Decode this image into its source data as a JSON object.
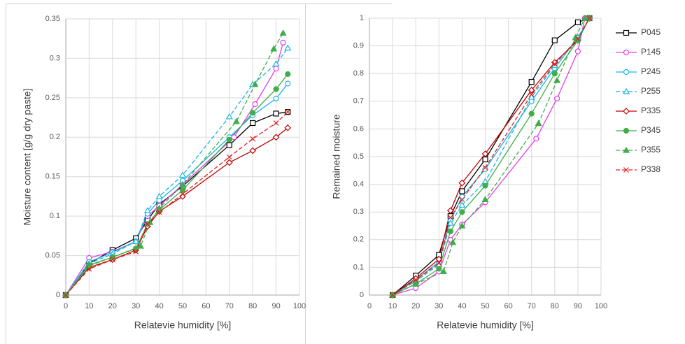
{
  "chart_data": [
    {
      "type": "line",
      "xlabel": "Relatevie humidity [%]",
      "ylabel": "Moisture content [g/g dry paste]",
      "xlim": [
        0,
        100
      ],
      "xticks": [
        0,
        10,
        20,
        30,
        40,
        50,
        60,
        70,
        80,
        90,
        100
      ],
      "ylim": [
        0,
        0.35
      ],
      "yticks": [
        0,
        0.05,
        0.1,
        0.15,
        0.2,
        0.25,
        0.3,
        0.35
      ],
      "grid": true,
      "series": [
        {
          "color": "#000000",
          "marker": "square",
          "dash": false,
          "filled": false,
          "x": [
            0,
            10,
            20,
            30,
            35,
            40,
            50,
            70,
            80,
            90,
            95
          ],
          "values": [
            0,
            0.04,
            0.057,
            0.072,
            0.095,
            0.115,
            0.138,
            0.19,
            0.218,
            0.23,
            0.232
          ]
        },
        {
          "color": "#e83ee8",
          "marker": "circle",
          "dash": false,
          "filled": false,
          "x": [
            0,
            10,
            20,
            30,
            35,
            40,
            50,
            72,
            81,
            90,
            93
          ],
          "values": [
            0,
            0.047,
            0.055,
            0.068,
            0.1,
            0.113,
            0.14,
            0.2,
            0.242,
            0.287,
            0.32
          ]
        },
        {
          "color": "#19b4e6",
          "marker": "circle",
          "dash": false,
          "filled": false,
          "x": [
            0,
            10,
            20,
            30,
            35,
            40,
            50,
            70,
            80,
            90,
            95
          ],
          "values": [
            0,
            0.042,
            0.054,
            0.068,
            0.103,
            0.12,
            0.145,
            0.2,
            0.228,
            0.249,
            0.268
          ]
        },
        {
          "color": "#19b4e6",
          "marker": "triangle",
          "dash": true,
          "filled": false,
          "x": [
            0,
            10,
            20,
            30,
            35,
            40,
            50,
            70,
            80,
            90,
            95
          ],
          "values": [
            0,
            0.04,
            0.052,
            0.068,
            0.107,
            0.125,
            0.152,
            0.226,
            0.267,
            0.293,
            0.313
          ]
        },
        {
          "color": "#c00000",
          "marker": "diamond",
          "dash": false,
          "filled": false,
          "x": [
            0,
            10,
            20,
            30,
            35,
            40,
            50,
            70,
            80,
            90,
            95
          ],
          "values": [
            0,
            0.035,
            0.045,
            0.057,
            0.087,
            0.106,
            0.125,
            0.168,
            0.183,
            0.2,
            0.212
          ]
        },
        {
          "color": "#3fae49",
          "marker": "circle",
          "dash": false,
          "filled": true,
          "x": [
            0,
            10,
            20,
            30,
            35,
            40,
            50,
            70,
            80,
            90,
            95
          ],
          "values": [
            0,
            0.038,
            0.048,
            0.059,
            0.09,
            0.108,
            0.133,
            0.197,
            0.231,
            0.261,
            0.28
          ]
        },
        {
          "color": "#3fae49",
          "marker": "triangle",
          "dash": true,
          "filled": true,
          "x": [
            0,
            10,
            20,
            32,
            36,
            40,
            50,
            73,
            81,
            89,
            93
          ],
          "values": [
            0,
            0.037,
            0.048,
            0.062,
            0.092,
            0.11,
            0.14,
            0.22,
            0.267,
            0.312,
            0.332
          ]
        },
        {
          "color": "#e02020",
          "marker": "x",
          "dash": true,
          "filled": false,
          "x": [
            0,
            10,
            20,
            30,
            35,
            40,
            50,
            70,
            80,
            90,
            95
          ],
          "values": [
            0,
            0.033,
            0.045,
            0.055,
            0.09,
            0.105,
            0.128,
            0.175,
            0.198,
            0.218,
            0.232
          ]
        }
      ]
    },
    {
      "type": "line",
      "xlabel": "Relatevie humidity [%]",
      "ylabel": "Remained moisture",
      "xlim": [
        0,
        100
      ],
      "xticks": [
        0,
        10,
        20,
        30,
        40,
        50,
        60,
        70,
        80,
        90,
        100
      ],
      "ylim": [
        0,
        1
      ],
      "yticks": [
        0,
        0.1,
        0.2,
        0.3,
        0.4,
        0.5,
        0.6,
        0.7,
        0.8,
        0.9,
        1
      ],
      "grid": true,
      "legend": "right",
      "series": [
        {
          "name": "P045",
          "color": "#000000",
          "marker": "square",
          "dash": false,
          "filled": false,
          "x": [
            10,
            20,
            30,
            35,
            40,
            50,
            70,
            80,
            90,
            95
          ],
          "values": [
            0,
            0.07,
            0.145,
            0.285,
            0.375,
            0.49,
            0.77,
            0.92,
            0.985,
            1
          ]
        },
        {
          "name": "P145",
          "color": "#e83ee8",
          "marker": "circle",
          "dash": false,
          "filled": false,
          "x": [
            10,
            20,
            30,
            35,
            40,
            50,
            72,
            81,
            90,
            93
          ],
          "values": [
            0,
            0.025,
            0.085,
            0.2,
            0.255,
            0.335,
            0.565,
            0.71,
            0.88,
            1
          ]
        },
        {
          "name": "P245",
          "color": "#19b4e6",
          "marker": "circle",
          "dash": false,
          "filled": false,
          "x": [
            10,
            20,
            30,
            35,
            40,
            50,
            70,
            80,
            90,
            95
          ],
          "values": [
            0,
            0.055,
            0.12,
            0.27,
            0.355,
            0.455,
            0.7,
            0.82,
            0.93,
            1
          ]
        },
        {
          "name": "P255",
          "color": "#19b4e6",
          "marker": "triangle",
          "dash": true,
          "filled": false,
          "x": [
            10,
            20,
            30,
            35,
            40,
            50,
            70,
            80,
            90,
            95
          ],
          "values": [
            0,
            0.05,
            0.11,
            0.26,
            0.325,
            0.41,
            0.715,
            0.83,
            0.93,
            1
          ]
        },
        {
          "name": "P335",
          "color": "#c00000",
          "marker": "diamond",
          "dash": false,
          "filled": false,
          "x": [
            10,
            20,
            30,
            35,
            40,
            50,
            70,
            80,
            90,
            95
          ],
          "values": [
            0,
            0.06,
            0.13,
            0.305,
            0.405,
            0.51,
            0.74,
            0.84,
            0.92,
            1
          ]
        },
        {
          "name": "P345",
          "color": "#3fae49",
          "marker": "circle",
          "dash": false,
          "filled": true,
          "x": [
            10,
            20,
            30,
            35,
            40,
            50,
            70,
            80,
            90,
            95
          ],
          "values": [
            0,
            0.04,
            0.095,
            0.23,
            0.3,
            0.395,
            0.655,
            0.8,
            0.92,
            1
          ]
        },
        {
          "name": "P355",
          "color": "#3fae49",
          "marker": "triangle",
          "dash": true,
          "filled": true,
          "x": [
            10,
            20,
            32,
            36,
            40,
            50,
            73,
            81,
            89,
            93
          ],
          "values": [
            0,
            0.04,
            0.085,
            0.19,
            0.25,
            0.345,
            0.62,
            0.775,
            0.93,
            1
          ]
        },
        {
          "name": "P338",
          "color": "#e02020",
          "marker": "x",
          "dash": true,
          "filled": false,
          "x": [
            10,
            20,
            30,
            35,
            40,
            50,
            70,
            80,
            90,
            95
          ],
          "values": [
            0,
            0.055,
            0.115,
            0.28,
            0.345,
            0.46,
            0.725,
            0.835,
            0.925,
            1
          ]
        }
      ]
    }
  ]
}
